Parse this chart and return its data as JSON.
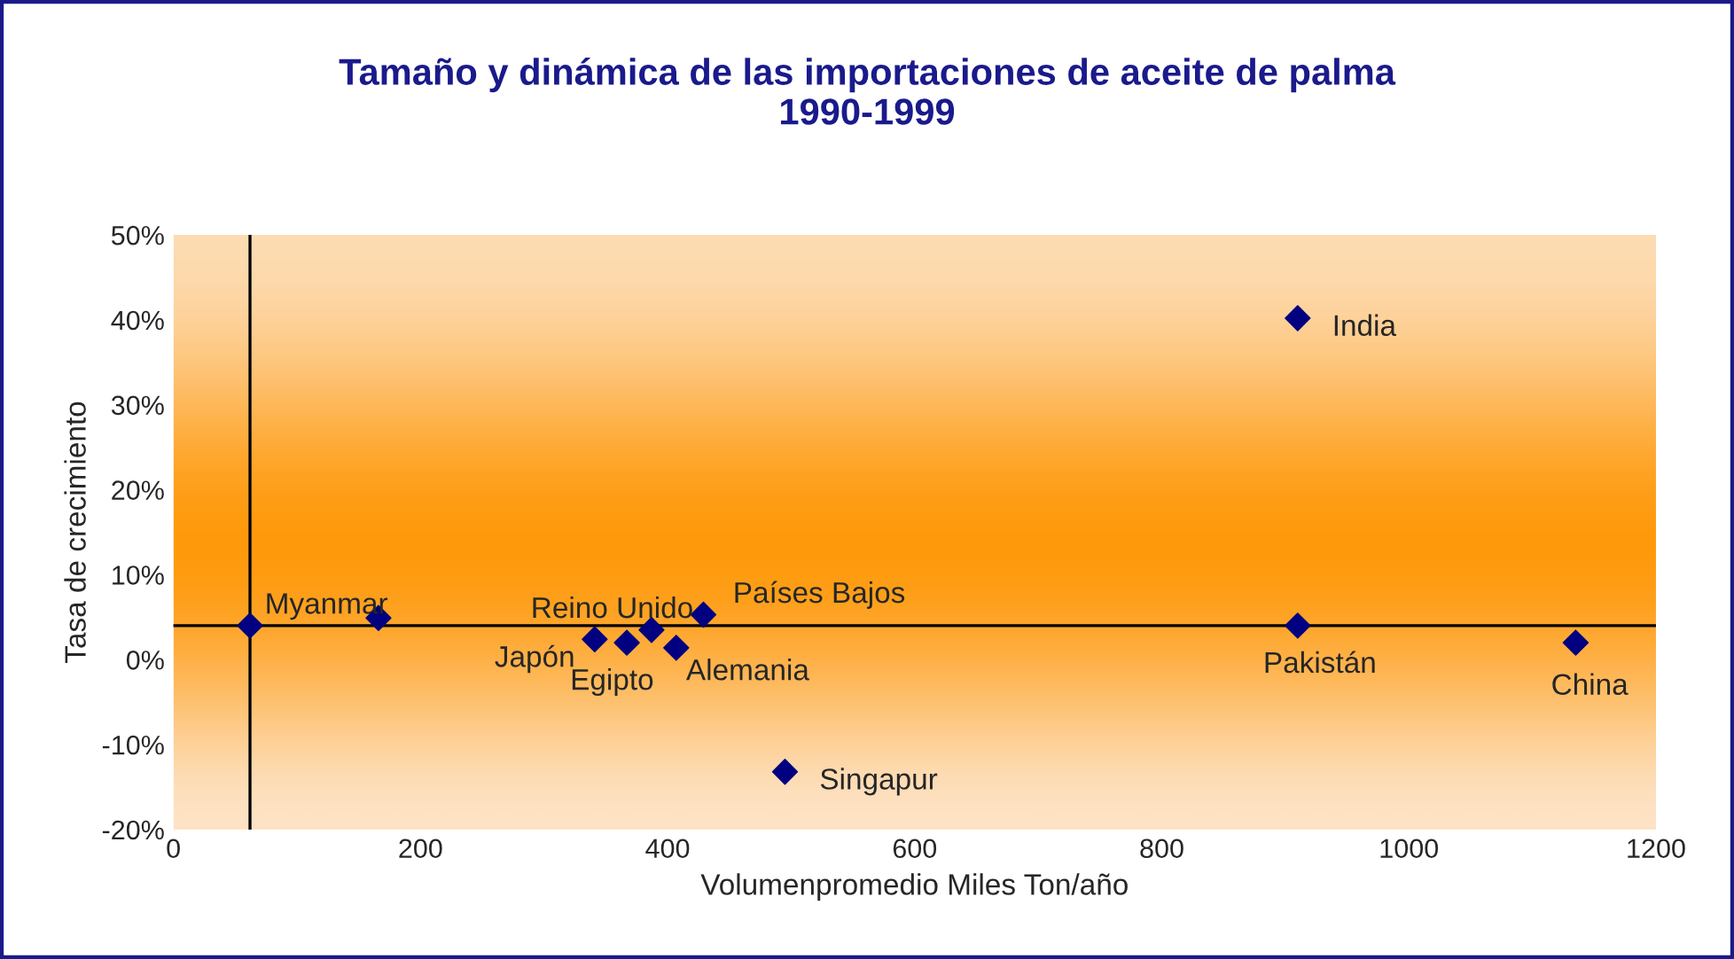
{
  "chart_data": {
    "type": "scatter",
    "title": "Tamaño y dinámica de las importaciones de aceite de palma\n1990-1999",
    "xlabel": "Volumenpromedio Miles Ton/año",
    "ylabel": "Tasa de crecimiento",
    "x": [
      62,
      166,
      341,
      367,
      387,
      407,
      429,
      495,
      910,
      910,
      1135
    ],
    "series": [
      {
        "color": "#000080",
        "values": [
          4.0,
          4.9,
          2.4,
          2.0,
          3.5,
          1.4,
          5.3,
          -13.2,
          40.2,
          4.0,
          2.0
        ]
      }
    ],
    "marker": "diamond",
    "grid": false,
    "legend": false,
    "xlim": [
      0,
      1200
    ],
    "xticks": [
      0,
      200,
      400,
      600,
      800,
      1000,
      1200
    ],
    "ylim": [
      -20,
      50
    ],
    "yticks": [
      {
        "value": -20,
        "label": "-20%"
      },
      {
        "value": -10,
        "label": "-10%"
      },
      {
        "value": 0,
        "label": "0%"
      },
      {
        "value": 10,
        "label": "10%"
      },
      {
        "value": 20,
        "label": "20%"
      },
      {
        "value": 30,
        "label": "30%"
      },
      {
        "value": 40,
        "label": "40%"
      },
      {
        "value": 50,
        "label": "50%"
      }
    ],
    "ref_lines": [
      {
        "axis": "x",
        "value": 62,
        "color": "#000000"
      },
      {
        "axis": "y",
        "value": 4.0,
        "color": "#000000"
      }
    ],
    "annotations": [
      {
        "text": "Myanmar",
        "x": 62,
        "y": 4.0
      },
      {
        "text": "Japón",
        "x": 341,
        "y": 2.4
      },
      {
        "text": "Egipto",
        "x": 367,
        "y": 2.0
      },
      {
        "text": "Reino Unido",
        "x": 387,
        "y": 3.5
      },
      {
        "text": "Alemania",
        "x": 407,
        "y": 1.4
      },
      {
        "text": "Países Bajos",
        "x": 429,
        "y": 5.3
      },
      {
        "text": "Singapur",
        "x": 495,
        "y": -13.2
      },
      {
        "text": "India",
        "x": 910,
        "y": 40.2
      },
      {
        "text": "Pakistán",
        "x": 910,
        "y": 4.0
      },
      {
        "text": "China",
        "x": 1135,
        "y": 2.0
      }
    ]
  }
}
